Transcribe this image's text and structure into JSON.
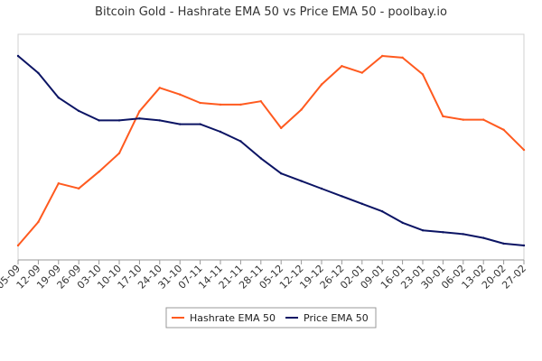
{
  "chart_data": {
    "type": "line",
    "title": "Bitcoin Gold -  Hashrate EMA 50 vs Price EMA 50 - poolbay.io",
    "xlabel": "",
    "ylabel": "",
    "categories": [
      "05-09",
      "12-09",
      "19-09",
      "26-09",
      "03-10",
      "10-10",
      "17-10",
      "24-10",
      "31-10",
      "07-11",
      "14-11",
      "21-11",
      "28-11",
      "05-12",
      "12-12",
      "19-12",
      "26-12",
      "02-01",
      "09-01",
      "16-01",
      "23-01",
      "30-01",
      "06-02",
      "13-02",
      "20-02",
      "27-02"
    ],
    "grid": false,
    "legend_position": "bottom",
    "series": [
      {
        "name": "Hashrate EMA 50",
        "color": "#FF5A1F",
        "values": [
          3,
          17,
          40,
          37,
          47,
          58,
          83,
          97,
          93,
          88,
          87,
          87,
          89,
          73,
          84,
          99,
          110,
          106,
          116,
          115,
          105,
          80,
          78,
          78,
          72,
          60
        ]
      },
      {
        "name": "Price EMA 50",
        "color": "#0B1464",
        "values": [
          100,
          91,
          78,
          71,
          66,
          66,
          67,
          66,
          64,
          64,
          60,
          55,
          46,
          38,
          34,
          30,
          26,
          22,
          18,
          12,
          8,
          7,
          6,
          4,
          1,
          0
        ]
      }
    ]
  }
}
